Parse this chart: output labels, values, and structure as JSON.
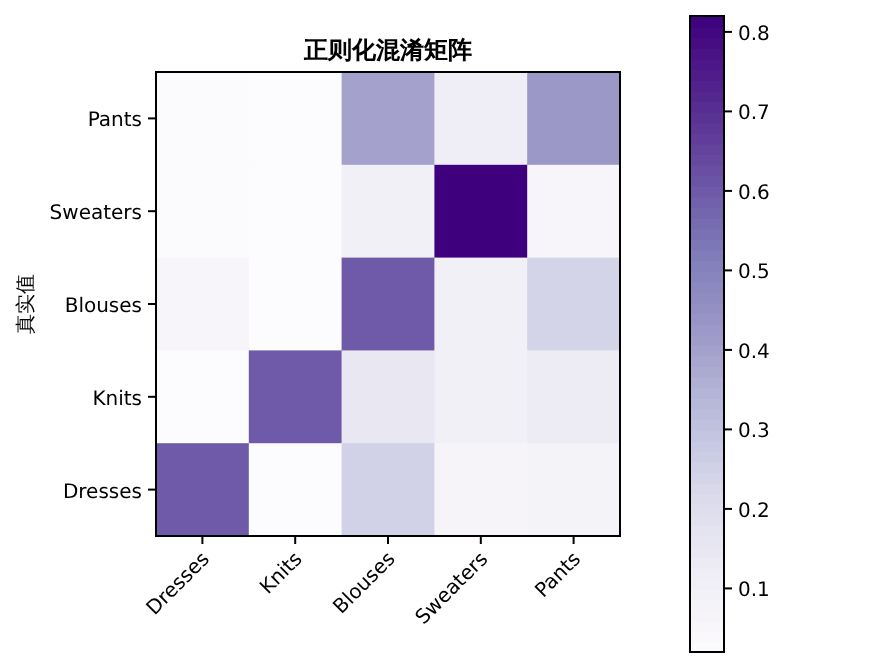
{
  "chart_data": {
    "type": "heatmap",
    "title": "正则化混淆矩阵",
    "ylabel": "真实值",
    "categories": [
      "Dresses",
      "Knits",
      "Blouses",
      "Sweaters",
      "Pants"
    ],
    "y_categories": [
      "Pants",
      "Sweaters",
      "Blouses",
      "Knits",
      "Dresses"
    ],
    "cells": [
      [
        0.03,
        0.02,
        0.4,
        0.12,
        0.43
      ],
      [
        0.03,
        0.02,
        0.1,
        0.82,
        0.06
      ],
      [
        0.06,
        0.02,
        0.6,
        0.1,
        0.24
      ],
      [
        0.02,
        0.6,
        0.15,
        0.1,
        0.13
      ],
      [
        0.6,
        0.02,
        0.25,
        0.07,
        0.08
      ]
    ],
    "clim": [
      0.02,
      0.82
    ],
    "cticks": [
      0.1,
      0.2,
      0.3,
      0.4,
      0.5,
      0.6,
      0.7,
      0.8
    ]
  }
}
